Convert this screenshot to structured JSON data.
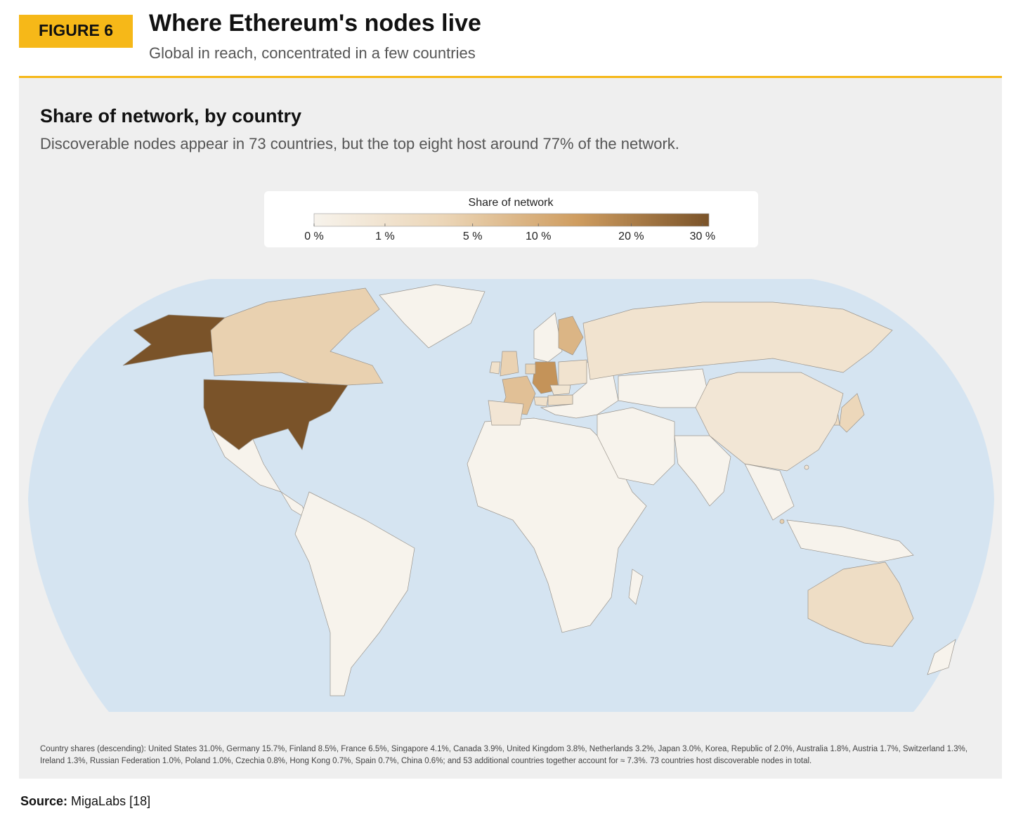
{
  "figure_label": "FIGURE 6",
  "header": {
    "title": "Where Ethereum's nodes live",
    "subtitle": "Global in reach, concentrated in a few countries"
  },
  "chart_data": {
    "type": "choropleth",
    "title": "Share of network, by country",
    "subtitle": "Discoverable nodes appear in 73 countries, but the top eight host around 77% of the network.",
    "colorbar": {
      "title": "Share of network",
      "scale": "sqrt",
      "clim": [
        0,
        31
      ],
      "colors": [
        "#f7f3ec",
        "#ebd5b6",
        "#cf9d60",
        "#7a5329"
      ],
      "ticks": [
        {
          "value": 0,
          "label": "0 %"
        },
        {
          "value": 1,
          "label": "1 %"
        },
        {
          "value": 5,
          "label": "5 %"
        },
        {
          "value": 10,
          "label": "10 %"
        },
        {
          "value": 20,
          "label": "20 %"
        },
        {
          "value": 30,
          "label": "30 %"
        }
      ]
    },
    "countries": [
      {
        "name": "United States",
        "value": 31.0
      },
      {
        "name": "Germany",
        "value": 15.7
      },
      {
        "name": "Finland",
        "value": 8.5
      },
      {
        "name": "France",
        "value": 6.5
      },
      {
        "name": "Singapore",
        "value": 4.1
      },
      {
        "name": "Canada",
        "value": 3.9
      },
      {
        "name": "United Kingdom",
        "value": 3.8
      },
      {
        "name": "Netherlands",
        "value": 3.2
      },
      {
        "name": "Japan",
        "value": 3.0
      },
      {
        "name": "Korea, Republic of",
        "value": 2.0
      },
      {
        "name": "Australia",
        "value": 1.8
      },
      {
        "name": "Austria",
        "value": 1.7
      },
      {
        "name": "Switzerland",
        "value": 1.3
      },
      {
        "name": "Ireland",
        "value": 1.3
      },
      {
        "name": "Russian Federation",
        "value": 1.0
      },
      {
        "name": "Poland",
        "value": 1.0
      },
      {
        "name": "Czechia",
        "value": 0.8
      },
      {
        "name": "Hong Kong",
        "value": 0.7
      },
      {
        "name": "Spain",
        "value": 0.7
      },
      {
        "name": "China",
        "value": 0.6
      }
    ],
    "footnote": "Country shares (descending): United States 31.0%, Germany 15.7%, Finland 8.5%, France 6.5%, Singapore 4.1%, Canada 3.9%, United Kingdom 3.8%, Netherlands 3.2%, Japan 3.0%, Korea, Republic of 2.0%, Australia 1.8%, Austria 1.7%, Switzerland 1.3%, Ireland 1.3%, Russian Federation 1.0%, Poland 1.0%, Czechia 0.8%, Hong Kong 0.7%, Spain 0.7%, China 0.6%; and 53 additional countries together account for ≈ 7.3%. 73 countries host discoverable nodes in total."
  },
  "source": {
    "label": "Source:",
    "text": "MigaLabs [18]"
  }
}
